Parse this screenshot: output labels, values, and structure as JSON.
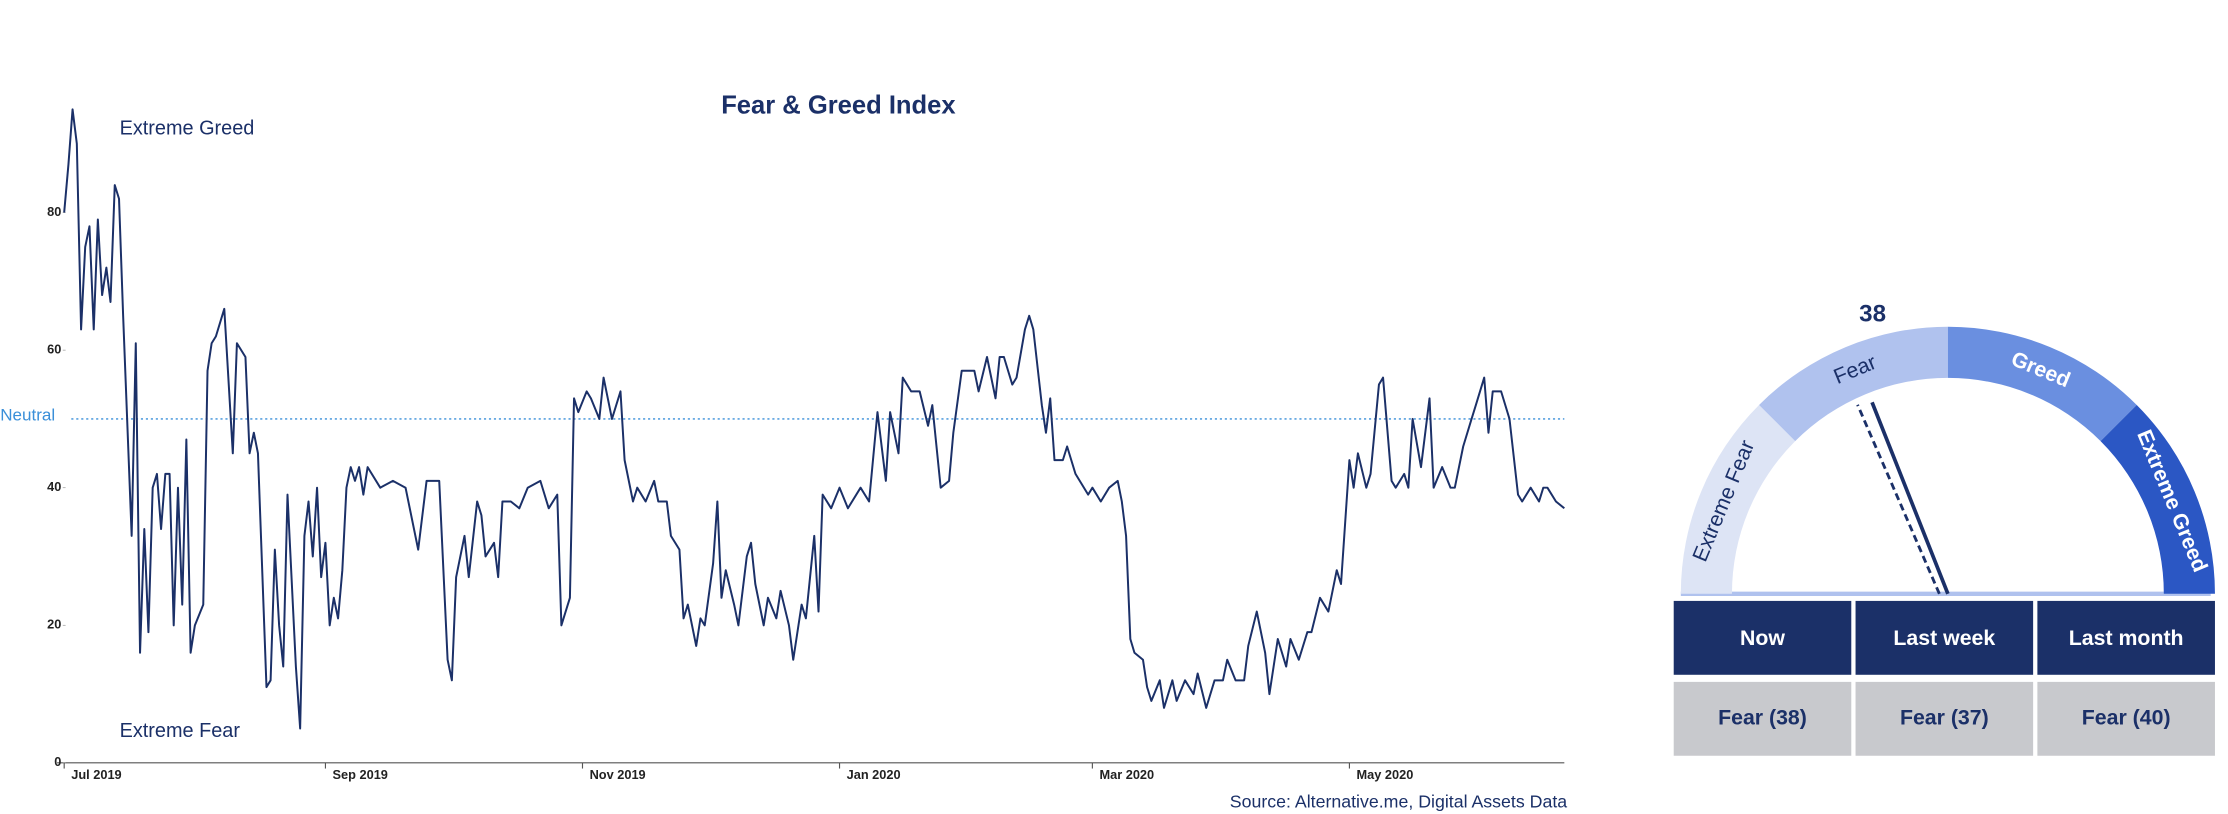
{
  "chart_data": [
    {
      "type": "line",
      "title": "Fear & Greed Index",
      "color": "#1b3068",
      "annotations": [
        "Extreme Greed",
        "Extreme Fear"
      ],
      "reference_line": {
        "value": 50,
        "label": "Neutral",
        "color": "#3a8fd9"
      },
      "source": "Source: Alternative.me, Digital Assets Data",
      "xlim": [
        0,
        356
      ],
      "xticks": [
        {
          "value": 0,
          "label": "Jul 2019"
        },
        {
          "value": 62,
          "label": "Sep 2019"
        },
        {
          "value": 123,
          "label": "Nov 2019"
        },
        {
          "value": 184,
          "label": "Jan 2020"
        },
        {
          "value": 244,
          "label": "Mar 2020"
        },
        {
          "value": 305,
          "label": "May 2020"
        }
      ],
      "ylim": [
        0,
        95
      ],
      "yticks": [
        0,
        20,
        40,
        60,
        80
      ],
      "x": [
        0,
        1,
        2,
        3,
        4,
        5,
        6,
        7,
        8,
        9,
        10,
        11,
        12,
        13,
        14,
        16,
        17,
        18,
        19,
        20,
        21,
        22,
        23,
        24,
        25,
        26,
        27,
        28,
        29,
        30,
        31,
        33,
        34,
        35,
        36,
        38,
        40,
        41,
        43,
        44,
        45,
        46,
        48,
        49,
        50,
        51,
        52,
        53,
        55,
        56,
        57,
        58,
        59,
        60,
        61,
        62,
        63,
        64,
        65,
        66,
        67,
        68,
        69,
        70,
        71,
        72,
        75,
        78,
        81,
        84,
        86,
        89,
        91,
        92,
        93,
        95,
        96,
        98,
        99,
        100,
        102,
        103,
        104,
        106,
        108,
        110,
        113,
        115,
        117,
        118,
        120,
        121,
        122,
        124,
        125,
        127,
        128,
        130,
        132,
        133,
        135,
        136,
        138,
        140,
        141,
        143,
        144,
        146,
        147,
        148,
        150,
        151,
        152,
        154,
        155,
        156,
        157,
        159,
        160,
        162,
        163,
        164,
        166,
        167,
        169,
        170,
        172,
        173,
        175,
        176,
        178,
        179,
        180,
        182,
        184,
        186,
        189,
        191,
        193,
        195,
        196,
        198,
        199,
        201,
        203,
        205,
        206,
        208,
        210,
        211,
        213,
        216,
        217,
        219,
        221,
        222,
        223,
        225,
        226,
        228,
        229,
        230,
        232,
        233,
        234,
        235,
        237,
        238,
        240,
        241,
        243,
        244,
        246,
        248,
        250,
        251,
        252,
        253,
        254,
        256,
        257,
        258,
        260,
        261,
        263,
        264,
        266,
        268,
        269,
        271,
        273,
        275,
        276,
        278,
        280,
        281,
        283,
        285,
        286,
        288,
        290,
        291,
        293,
        295,
        296,
        298,
        300,
        302,
        303,
        305,
        306,
        307,
        309,
        310,
        312,
        313,
        315,
        316,
        318,
        319,
        320,
        322,
        324,
        325,
        327,
        329,
        330,
        332,
        334,
        335,
        337,
        338,
        339,
        341,
        343,
        345,
        346,
        348,
        350,
        351,
        352,
        354,
        356
      ],
      "values": [
        80,
        87,
        95,
        90,
        63,
        75,
        78,
        63,
        79,
        68,
        72,
        67,
        84,
        82,
        65,
        33,
        61,
        16,
        34,
        19,
        40,
        42,
        34,
        42,
        42,
        20,
        40,
        23,
        47,
        16,
        20,
        23,
        57,
        61,
        62,
        66,
        45,
        61,
        59,
        45,
        48,
        45,
        11,
        12,
        31,
        20,
        14,
        39,
        14,
        5,
        33,
        38,
        30,
        40,
        27,
        32,
        20,
        24,
        21,
        28,
        40,
        43,
        41,
        43,
        39,
        43,
        40,
        41,
        40,
        31,
        41,
        41,
        15,
        12,
        27,
        33,
        27,
        38,
        36,
        30,
        32,
        27,
        38,
        38,
        37,
        40,
        41,
        37,
        39,
        20,
        24,
        53,
        51,
        54,
        53,
        50,
        56,
        50,
        54,
        44,
        38,
        40,
        38,
        41,
        38,
        38,
        33,
        31,
        21,
        23,
        17,
        21,
        20,
        29,
        38,
        24,
        28,
        23,
        20,
        30,
        32,
        26,
        20,
        24,
        21,
        25,
        20,
        15,
        23,
        21,
        33,
        22,
        39,
        37,
        40,
        37,
        40,
        38,
        51,
        41,
        51,
        45,
        56,
        54,
        54,
        49,
        52,
        40,
        41,
        48,
        57,
        57,
        54,
        59,
        53,
        59,
        59,
        55,
        56,
        63,
        65,
        63,
        52,
        48,
        53,
        44,
        44,
        46,
        42,
        41,
        39,
        40,
        38,
        40,
        41,
        38,
        33,
        18,
        16,
        15,
        11,
        9,
        12,
        8,
        12,
        9,
        12,
        10,
        13,
        8,
        12,
        12,
        15,
        12,
        12,
        17,
        22,
        16,
        10,
        18,
        14,
        18,
        15,
        19,
        19,
        24,
        22,
        28,
        26,
        44,
        40,
        45,
        40,
        42,
        55,
        56,
        41,
        40,
        42,
        40,
        50,
        43,
        53,
        40,
        43,
        40,
        40,
        46,
        50,
        52,
        56,
        48,
        54,
        54,
        50,
        39,
        38,
        40,
        38,
        40,
        40,
        38,
        37
      ]
    },
    {
      "type": "gauge",
      "value": 38,
      "previous": 37,
      "range": [
        0,
        100
      ],
      "segments": [
        {
          "label": "Extreme Fear",
          "from": 0,
          "to": 25,
          "color": "#dde4f5"
        },
        {
          "label": "Fear",
          "from": 25,
          "to": 50,
          "color": "#b0c2ee"
        },
        {
          "label": "Greed",
          "from": 50,
          "to": 75,
          "color": "#6a8fe0"
        },
        {
          "label": "Extreme Greed",
          "from": 75,
          "to": 100,
          "color": "#2b57c4"
        }
      ]
    }
  ],
  "table": {
    "header": [
      "Now",
      "Last week",
      "Last month"
    ],
    "rows": [
      [
        "Fear (38)",
        "Fear (37)",
        "Fear (40)"
      ]
    ]
  }
}
